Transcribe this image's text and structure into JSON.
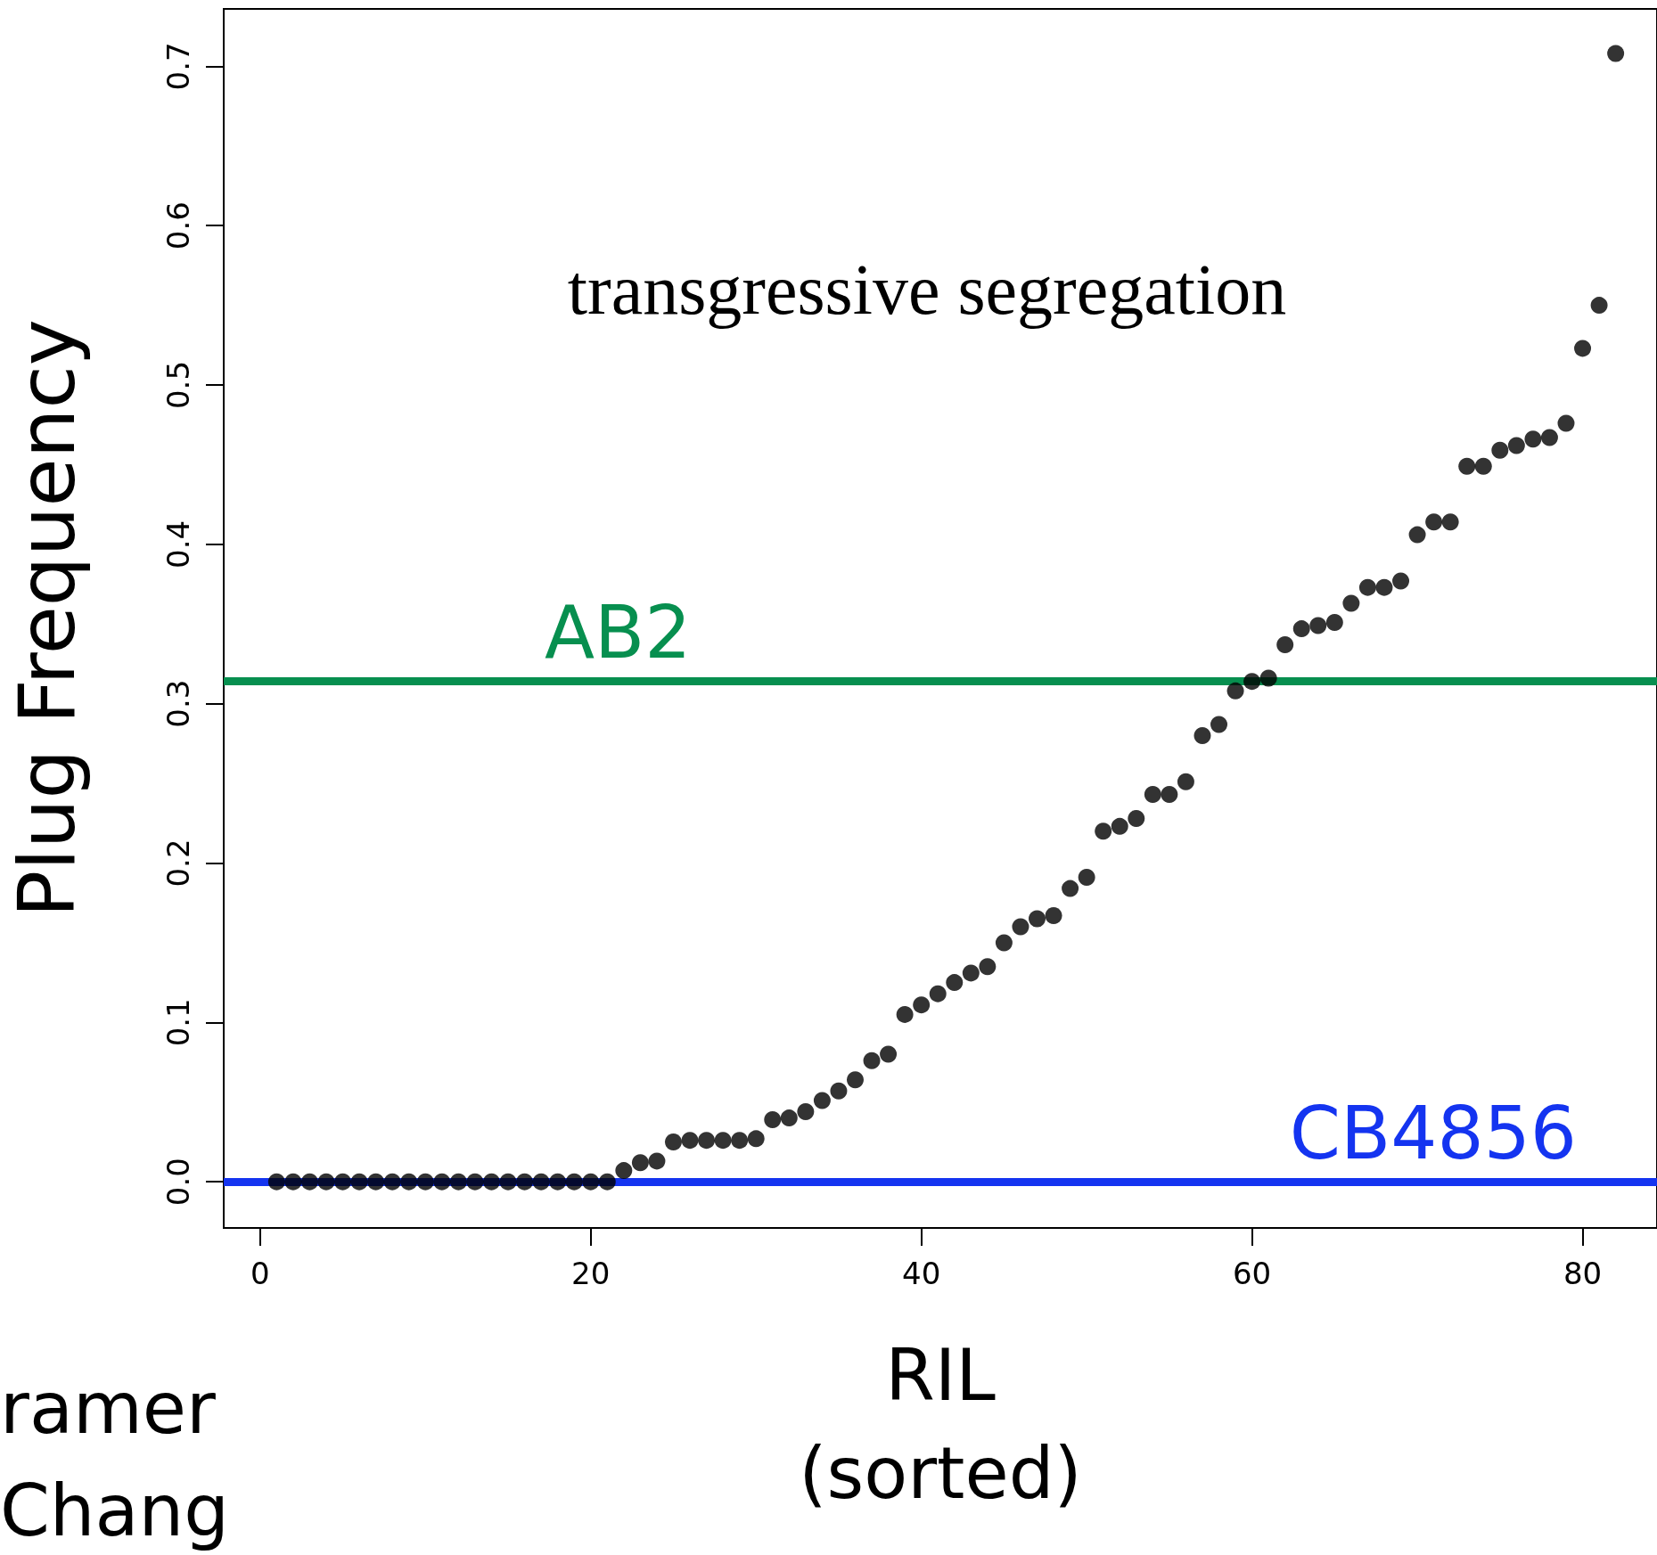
{
  "chart_data": {
    "type": "scatter",
    "xlabel": "RIL\n(sorted)",
    "ylabel": "Plug Frequency",
    "x": [
      1,
      2,
      3,
      4,
      5,
      6,
      7,
      8,
      9,
      10,
      11,
      12,
      13,
      14,
      15,
      16,
      17,
      18,
      19,
      20,
      21,
      22,
      23,
      24,
      25,
      26,
      27,
      28,
      29,
      30,
      31,
      32,
      33,
      34,
      35,
      36,
      37,
      38,
      39,
      40,
      41,
      42,
      43,
      44,
      45,
      46,
      47,
      48,
      49,
      50,
      51,
      52,
      53,
      54,
      55,
      56,
      57,
      58,
      59,
      60,
      61,
      62,
      63,
      64,
      65,
      66,
      67,
      68,
      69,
      70,
      71,
      72,
      73,
      74,
      75,
      76,
      77,
      78,
      79,
      80,
      81,
      82
    ],
    "series": [
      {
        "color": "#000000",
        "values": [
          0,
          0,
          0,
          0,
          0,
          0,
          0,
          0,
          0,
          0,
          0,
          0,
          0,
          0,
          0,
          0,
          0,
          0,
          0,
          0,
          0,
          0.007,
          0.012,
          0.013,
          0.025,
          0.026,
          0.026,
          0.026,
          0.026,
          0.027,
          0.039,
          0.04,
          0.044,
          0.051,
          0.057,
          0.064,
          0.076,
          0.08,
          0.105,
          0.111,
          0.118,
          0.125,
          0.131,
          0.135,
          0.15,
          0.16,
          0.165,
          0.167,
          0.184,
          0.191,
          0.22,
          0.223,
          0.228,
          0.243,
          0.243,
          0.251,
          0.28,
          0.287,
          0.308,
          0.314,
          0.316,
          0.337,
          0.347,
          0.349,
          0.351,
          0.363,
          0.373,
          0.373,
          0.377,
          0.406,
          0.414,
          0.414,
          0.449,
          0.449,
          0.459,
          0.462,
          0.466,
          0.467,
          0.476,
          0.523,
          0.55,
          0.708
        ]
      }
    ],
    "xlim": [
      -2.2,
      84.5
    ],
    "xticks": [
      0,
      20,
      40,
      60,
      80
    ],
    "ylim": [
      -0.029,
      0.736
    ],
    "yticks": [
      {
        "value": 0,
        "label": "0.0"
      },
      0.1,
      0.2,
      0.3,
      0.4,
      0.5,
      0.6,
      0.7
    ],
    "ref_lines": [
      {
        "axis": "y",
        "value": 0,
        "label": "CB4856",
        "color": "#1434f0"
      },
      {
        "axis": "y",
        "value": 0.314,
        "label": "AB2",
        "color": "#078f4f"
      }
    ],
    "annotations": [
      "transgressive segregation",
      "ramer",
      "Chang"
    ],
    "marker": "circle",
    "grid": false
  }
}
